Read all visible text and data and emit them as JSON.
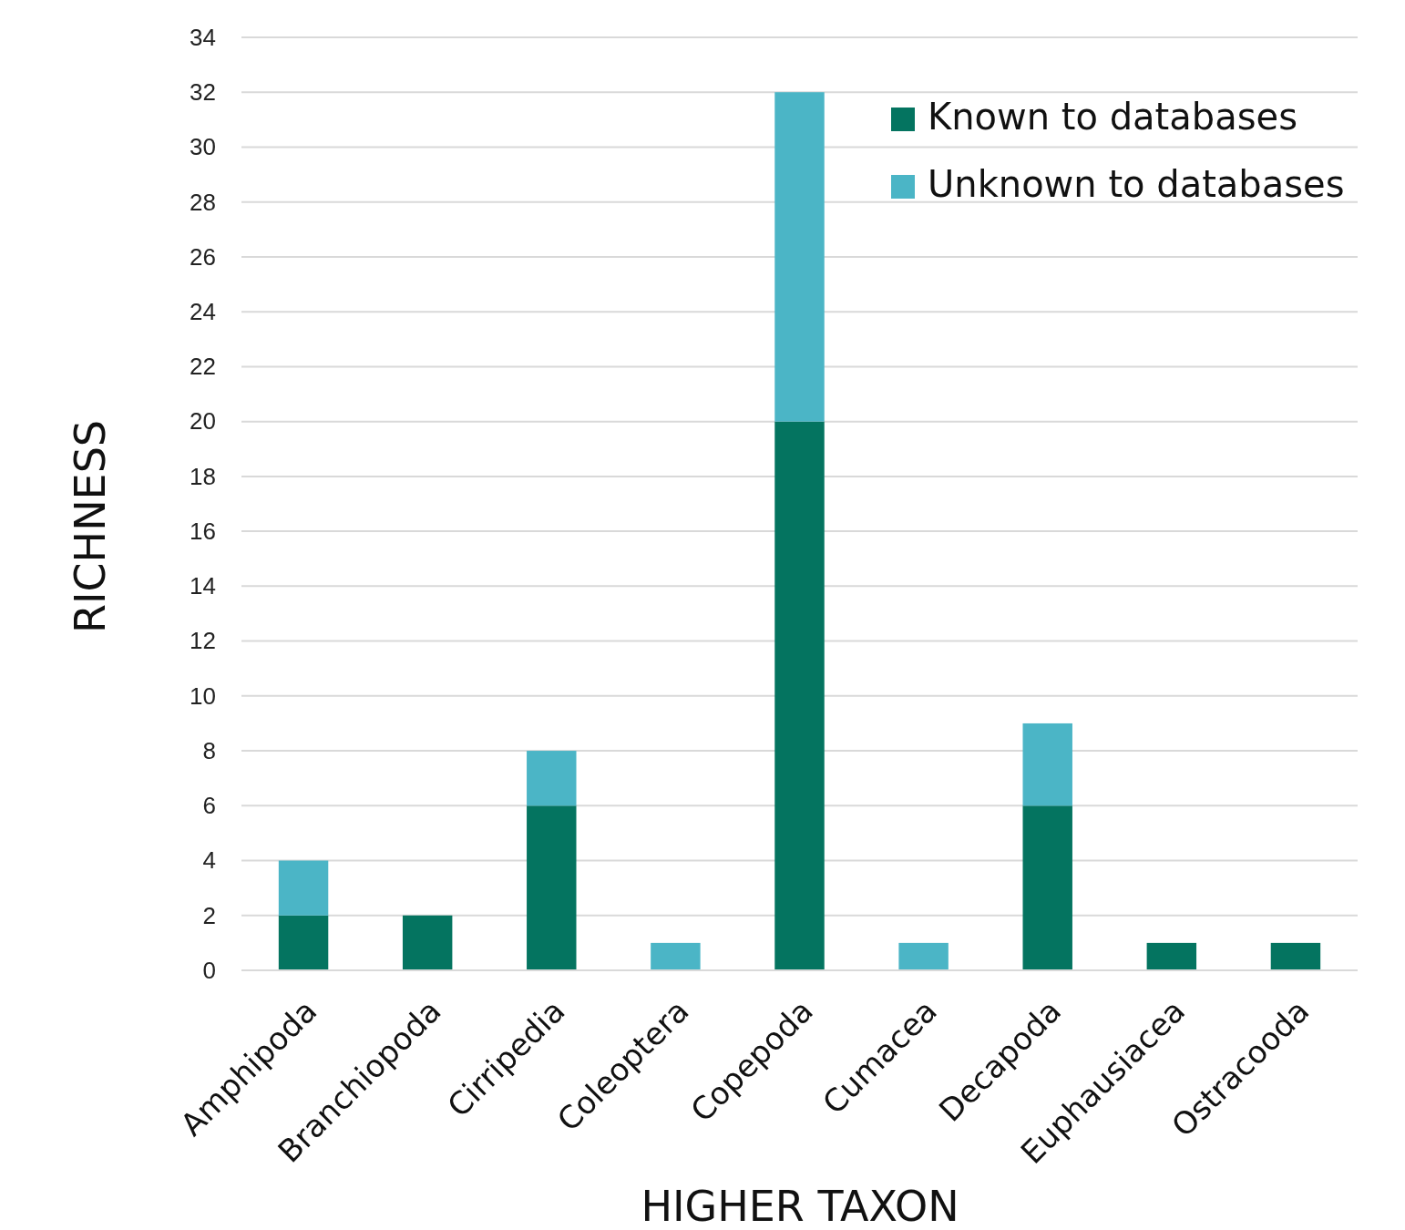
{
  "chart_data": {
    "type": "bar",
    "stacked": true,
    "xlabel": "HIGHER TAXON",
    "ylabel": "RICHNESS",
    "categories": [
      "Amphipoda",
      "Branchiopoda",
      "Cirripedia",
      "Coleoptera",
      "Copepoda",
      "Cumacea",
      "Decapoda",
      "Euphausiacea",
      "Ostracooda"
    ],
    "series": [
      {
        "name": "Known to databases",
        "color": "#047460",
        "values": [
          2,
          2,
          6,
          0,
          20,
          0,
          6,
          1,
          1
        ]
      },
      {
        "name": "Unknown to databases",
        "color": "#4bb5c6",
        "values": [
          2,
          0,
          2,
          1,
          12,
          1,
          3,
          0,
          0
        ]
      }
    ],
    "ylim": [
      0,
      34
    ],
    "yticks": [
      0,
      2,
      4,
      6,
      8,
      10,
      12,
      14,
      16,
      18,
      20,
      22,
      24,
      26,
      28,
      30,
      32,
      34
    ],
    "grid": "y",
    "legend": "top right"
  }
}
